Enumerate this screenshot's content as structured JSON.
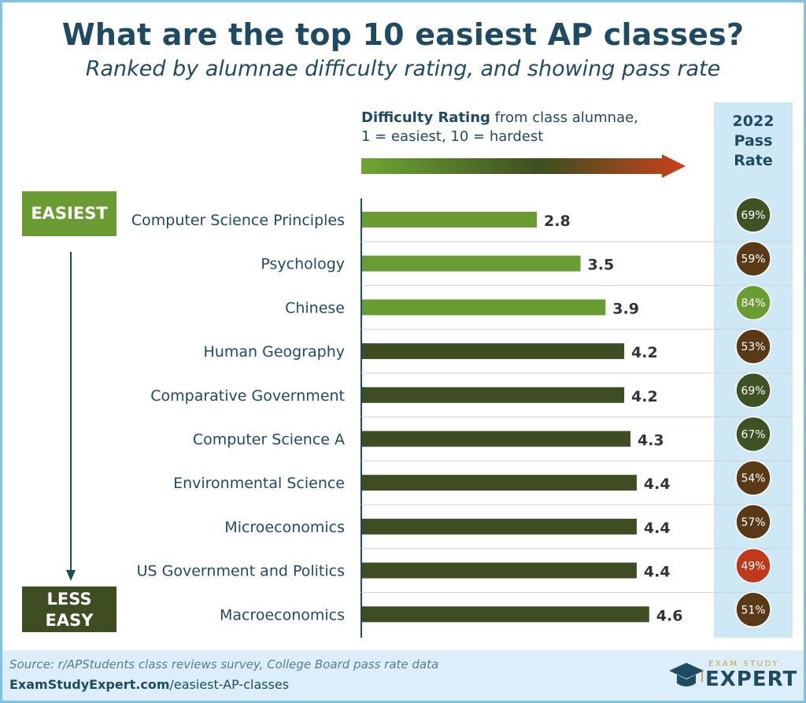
{
  "title": "What are the top 10 easiest AP classes?",
  "subtitle": "Ranked by alumnae difficulty rating, and showing pass rate",
  "difficulty_label": {
    "bold": "Difficulty Rating",
    "rest": "from class alumnae,",
    "line2": "1 = easiest, 10 = hardest"
  },
  "pass_header": [
    "2022",
    "Pass",
    "Rate"
  ],
  "badges": {
    "top": "EASIEST",
    "bottom_line1": "LESS",
    "bottom_line2": "EASY"
  },
  "footer": {
    "source": "Source: r/APStudents class reviews survey, College Board pass rate data",
    "site_bold": "ExamStudyExpert.com",
    "site_rest": "/easiest-AP-classes",
    "logo_top": "EXAM STUDY",
    "logo_main": "EXPERT"
  },
  "colors": {
    "bar_light": "#6a9c33",
    "bar_dark": "#3f4d22",
    "title": "#1e4b63",
    "pass_low": "#c0391c",
    "pass_mid": "#5a3a16",
    "pass_high": "#6a9c33",
    "pass_green_dark": "#3e5226"
  },
  "chart_data": {
    "type": "bar",
    "orientation": "horizontal",
    "title": "What are the top 10 easiest AP classes?",
    "xlabel": "Difficulty Rating from class alumnae, 1 = easiest, 10 = hardest",
    "ylabel": "",
    "xlim": [
      0,
      10
    ],
    "categories": [
      "Computer Science Principles",
      "Psychology",
      "Chinese",
      "Human Geography",
      "Comparative Government",
      "Computer Science A",
      "Environmental Science",
      "Microeconomics",
      "US Government and Politics",
      "Macroeconomics"
    ],
    "values": [
      2.8,
      3.5,
      3.9,
      4.2,
      4.2,
      4.3,
      4.4,
      4.4,
      4.4,
      4.6
    ],
    "value_labels": [
      "2.8",
      "3.5",
      "3.9",
      "4.2",
      "4.2",
      "4.3",
      "4.4",
      "4.4",
      "4.4",
      "4.6"
    ],
    "bar_colors": [
      "#6a9c33",
      "#6a9c33",
      "#6a9c33",
      "#3f4d22",
      "#3f4d22",
      "#3f4d22",
      "#3f4d22",
      "#3f4d22",
      "#3f4d22",
      "#3f4d22"
    ],
    "pass_rate_title": "2022 Pass Rate",
    "pass_rates": [
      69,
      59,
      84,
      53,
      69,
      67,
      54,
      57,
      49,
      51
    ],
    "pass_rate_labels": [
      "69%",
      "59%",
      "84%",
      "53%",
      "69%",
      "67%",
      "54%",
      "57%",
      "49%",
      "51%"
    ],
    "pass_rate_colors": [
      "#3e5226",
      "#5a3a16",
      "#6a9c33",
      "#5a3a16",
      "#3e5226",
      "#3e5226",
      "#5a3a16",
      "#5a3a16",
      "#c0391c",
      "#5a3a16"
    ]
  }
}
